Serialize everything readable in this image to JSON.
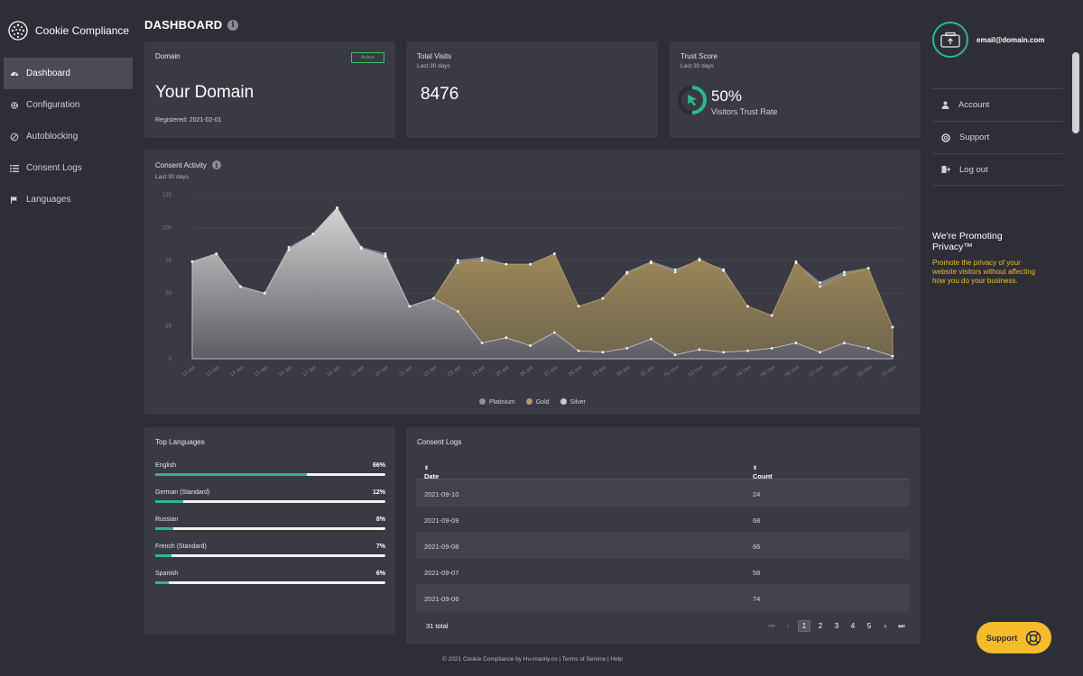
{
  "brand": {
    "name": "Cookie Compliance"
  },
  "nav": [
    {
      "label": "Dashboard",
      "icon": "dashboard-icon",
      "active": true
    },
    {
      "label": "Configuration",
      "icon": "gear-icon"
    },
    {
      "label": "Autoblocking",
      "icon": "block-icon"
    },
    {
      "label": "Consent Logs",
      "icon": "list-icon"
    },
    {
      "label": "Languages",
      "icon": "flag-icon"
    }
  ],
  "header": {
    "title": "DASHBOARD",
    "info": "i"
  },
  "domain_card": {
    "label": "Domain",
    "status": "Active",
    "domain": "Your Domain",
    "registered": "Registered: 2021-02-01"
  },
  "visits_card": {
    "label": "Total Visits",
    "period": "Last 30 days",
    "value": "8476"
  },
  "trust_card": {
    "label": "Trust Score",
    "period": "Last 30 days",
    "value": "50%",
    "percent": 50,
    "text": "Visitors Trust Rate"
  },
  "activity": {
    "title": "Consent Activity",
    "period": "Last 30 days",
    "info": "i"
  },
  "chart_data": {
    "type": "area",
    "title": "Consent Activity",
    "x": [
      "12 авг",
      "13 авг",
      "14 авг",
      "15 авг",
      "16 авг",
      "17 авг",
      "18 авг",
      "19 авг",
      "20 авг",
      "21 авг",
      "22 авг",
      "23 авг",
      "24 авг",
      "25 авг",
      "26 авг",
      "27 авг",
      "28 авг",
      "29 авг",
      "30 авг",
      "31 авг",
      "01 сен",
      "02 сен",
      "03 сен",
      "04 сен",
      "05 сен",
      "06 сен",
      "07 сен",
      "08 сен",
      "09 сен",
      "10 сен"
    ],
    "yticks": [
      0,
      25,
      50,
      75,
      100,
      125
    ],
    "ylim": [
      0,
      125
    ],
    "grid": true,
    "legend_position": "bottom",
    "series": [
      {
        "name": "Platinium",
        "color": "#8e8f99",
        "values": [
          74,
          80,
          55,
          50,
          85,
          95,
          115,
          85,
          80,
          40,
          46,
          75,
          77,
          72,
          72,
          80,
          40,
          46,
          66,
          74,
          68,
          75,
          68,
          40,
          33,
          73,
          58,
          66,
          69,
          24
        ]
      },
      {
        "name": "Gold",
        "color": "#b49a5e",
        "values": [
          74,
          80,
          55,
          50,
          83,
          95,
          115,
          84,
          78,
          40,
          46,
          73,
          75,
          72,
          72,
          80,
          40,
          46,
          65,
          73,
          66,
          76,
          67,
          40,
          33,
          74,
          55,
          64,
          69,
          24
        ]
      },
      {
        "name": "Silver",
        "color": "#c9c9cf",
        "values": [
          74,
          80,
          55,
          50,
          83,
          95,
          115,
          84,
          78,
          40,
          46,
          36,
          12,
          16,
          10,
          20,
          6,
          5,
          8,
          15,
          3,
          7,
          5,
          6,
          8,
          12,
          5,
          12,
          8,
          2
        ]
      }
    ]
  },
  "languages": {
    "title": "Top Languages",
    "items": [
      {
        "name": "English",
        "percent": "66%",
        "fraction": 0.66
      },
      {
        "name": "German (Standard)",
        "percent": "12%",
        "fraction": 0.12
      },
      {
        "name": "Russian",
        "percent": "8%",
        "fraction": 0.08
      },
      {
        "name": "French (Standard)",
        "percent": "7%",
        "fraction": 0.07
      },
      {
        "name": "Spanish",
        "percent": "6%",
        "fraction": 0.06
      }
    ]
  },
  "logs": {
    "title": "Consent Logs",
    "columns": [
      "Date",
      "Count"
    ],
    "rows": [
      [
        "2021-09-10",
        "24"
      ],
      [
        "2021-09-09",
        "68"
      ],
      [
        "2021-09-08",
        "66"
      ],
      [
        "2021-09-07",
        "58"
      ],
      [
        "2021-09-06",
        "74"
      ]
    ],
    "total": "31 total",
    "pages": [
      "1",
      "2",
      "3",
      "4",
      "5"
    ],
    "current_page": "1"
  },
  "user": {
    "email": "email@domain.com"
  },
  "right_menu": [
    {
      "label": "Account",
      "icon": "user-icon"
    },
    {
      "label": "Support",
      "icon": "lifebuoy-icon"
    },
    {
      "label": "Log out",
      "icon": "logout-icon"
    }
  ],
  "promo": {
    "title": "We're Promoting Privacy™",
    "text": "Promote the privacy of your website visitors without affecting how you do your business."
  },
  "support_button": {
    "label": "Support"
  },
  "footer": {
    "text": "© 2021 Cookie Compliance by Hu-manity.co | Terms of Service | Help"
  },
  "colors": {
    "background": "#2d2e36",
    "card": "#393a44",
    "accent": "#2bb98a",
    "promo": "#f5b92e",
    "active_badge": "#3fc36d"
  }
}
